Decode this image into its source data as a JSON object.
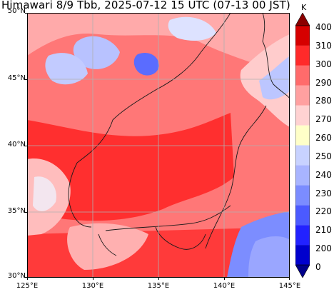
{
  "title": "Himawari 8/9 Tbb, 2025-07-12 15 UTC (07-13 00 JST)",
  "map": {
    "lon_range": [
      125,
      145
    ],
    "lat_range": [
      30,
      50
    ],
    "x_ticks": [
      "125°E",
      "130°E",
      "135°E",
      "140°E",
      "145°E"
    ],
    "y_ticks": [
      "30°N",
      "35°N",
      "40°N",
      "45°N",
      "50°N"
    ],
    "grid": true
  },
  "colorbar": {
    "unit": "K",
    "labels": [
      "0",
      "200",
      "210",
      "220",
      "230",
      "240",
      "250",
      "260",
      "270",
      "280",
      "290",
      "300",
      "310",
      "400"
    ],
    "colors": [
      "#00008b",
      "#0000cd",
      "#2222ff",
      "#4b5aff",
      "#7b8cff",
      "#a8b4ff",
      "#c8d2ff",
      "#ffffc8",
      "#ffd2d2",
      "#ffa0a0",
      "#ff6b6b",
      "#ff2a2a",
      "#d60000",
      "#8b0000"
    ]
  }
}
